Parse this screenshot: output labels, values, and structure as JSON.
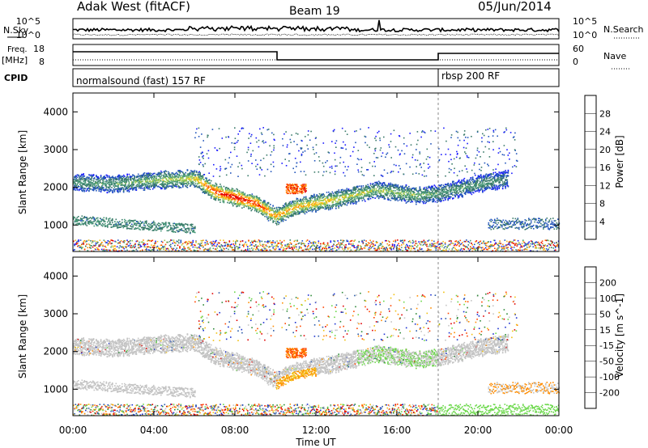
{
  "header": {
    "station": "Adak West (fitACF)",
    "beam": "Beam 19",
    "date": "05/Jun/2014"
  },
  "noise_panel": {
    "left_label": "N.Sky",
    "right_label": "N.Search",
    "tick_top": "10^5",
    "tick_bottom": "10^0"
  },
  "freq_panel": {
    "left_label": "Freq.",
    "unit": "[MHz]",
    "tick_top": "18",
    "tick_bottom": "8",
    "right_label": "Nave",
    "right_tick_top": "60",
    "right_tick_bottom": "0"
  },
  "cpid_panel": {
    "label": "CPID",
    "mode1": "normalsound (fast) 157 RF",
    "mode2": "rbsp 200 RF"
  },
  "colors": {
    "power_scale": [
      "#1a1aff",
      "#2255bb",
      "#3a7a6a",
      "#4a9a7a",
      "#9ac850",
      "#f5c21a",
      "#ff8a00",
      "#ff4500",
      "#e60000"
    ],
    "velocity_scale": [
      "#1a2fd0",
      "#2a5aa8",
      "#2f8a3a",
      "#6bd84a",
      "#c4c4c4",
      "#f0c010",
      "#ff8c00",
      "#ff4500",
      "#e00000"
    ]
  },
  "chart_data": [
    {
      "type": "heatmap",
      "name": "power",
      "title": "Adak West (fitACF) Beam 19 05/Jun/2014",
      "xlabel": "Time UT",
      "ylabel": "Slant Range [km]",
      "x_ticks": [
        "00:00",
        "04:00",
        "08:00",
        "12:00",
        "16:00",
        "20:00",
        "00:00"
      ],
      "y_ticks": [
        "1000",
        "2000",
        "3000",
        "4000"
      ],
      "ylim": [
        300,
        4500
      ],
      "colorbar_label": "Power [dB]",
      "colorbar_ticks": [
        "4",
        "8",
        "12",
        "16",
        "20",
        "24",
        "28"
      ],
      "scatter_band": [
        {
          "hour": 0.0,
          "range_km": 2150,
          "power_db": 8
        },
        {
          "hour": 2.0,
          "range_km": 2100,
          "power_db": 8
        },
        {
          "hour": 4.0,
          "range_km": 2200,
          "power_db": 10
        },
        {
          "hour": 6.0,
          "range_km": 2250,
          "power_db": 12
        },
        {
          "hour": 7.0,
          "range_km": 1900,
          "power_db": 18
        },
        {
          "hour": 8.0,
          "range_km": 1750,
          "power_db": 20
        },
        {
          "hour": 9.0,
          "range_km": 1600,
          "power_db": 18
        },
        {
          "hour": 10.0,
          "range_km": 1250,
          "power_db": 14
        },
        {
          "hour": 11.0,
          "range_km": 1500,
          "power_db": 14
        },
        {
          "hour": 13.0,
          "range_km": 1700,
          "power_db": 12
        },
        {
          "hour": 15.0,
          "range_km": 1950,
          "power_db": 10
        },
        {
          "hour": 17.0,
          "range_km": 1800,
          "power_db": 10
        },
        {
          "hour": 18.0,
          "range_km": 1850,
          "power_db": 8
        },
        {
          "hour": 20.0,
          "range_km": 2100,
          "power_db": 8
        },
        {
          "hour": 21.5,
          "range_km": 2250,
          "power_db": 6
        }
      ]
    },
    {
      "type": "heatmap",
      "name": "velocity",
      "xlabel": "Time UT",
      "ylabel": "Slant Range [km]",
      "x_ticks": [
        "00:00",
        "04:00",
        "08:00",
        "12:00",
        "16:00",
        "20:00",
        "00:00"
      ],
      "y_ticks": [
        "1000",
        "2000",
        "3000",
        "4000"
      ],
      "ylim": [
        300,
        4500
      ],
      "colorbar_label": "Velocity [m s^-1]",
      "colorbar_ticks": [
        "200",
        "100",
        "50",
        "15",
        "-15",
        "-50",
        "-100",
        "-200"
      ]
    }
  ]
}
